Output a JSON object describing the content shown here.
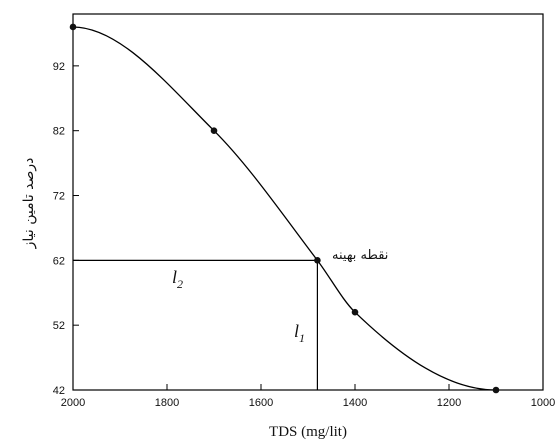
{
  "chart_data": {
    "type": "line",
    "xlabel": "TDS (mg/lit)",
    "ylabel": "درصد تامین نیاز",
    "xlim": [
      2000,
      1000
    ],
    "ylim": [
      42,
      100
    ],
    "x_ticks": [
      2000,
      1800,
      1600,
      1400,
      1200,
      1000
    ],
    "y_ticks": [
      42,
      52,
      62,
      72,
      82,
      92
    ],
    "series": [
      {
        "values_x": [
          2000,
          1700,
          1480,
          1400,
          1100
        ],
        "values_y": [
          98,
          82,
          62,
          54,
          42
        ]
      }
    ],
    "optimum": {
      "label": "نقطه بهینه",
      "x": 1480,
      "y": 62,
      "l1": {
        "base": "l",
        "sub": "1"
      },
      "l2": {
        "base": "l",
        "sub": "2"
      }
    },
    "grid": false,
    "legend": "none"
  }
}
